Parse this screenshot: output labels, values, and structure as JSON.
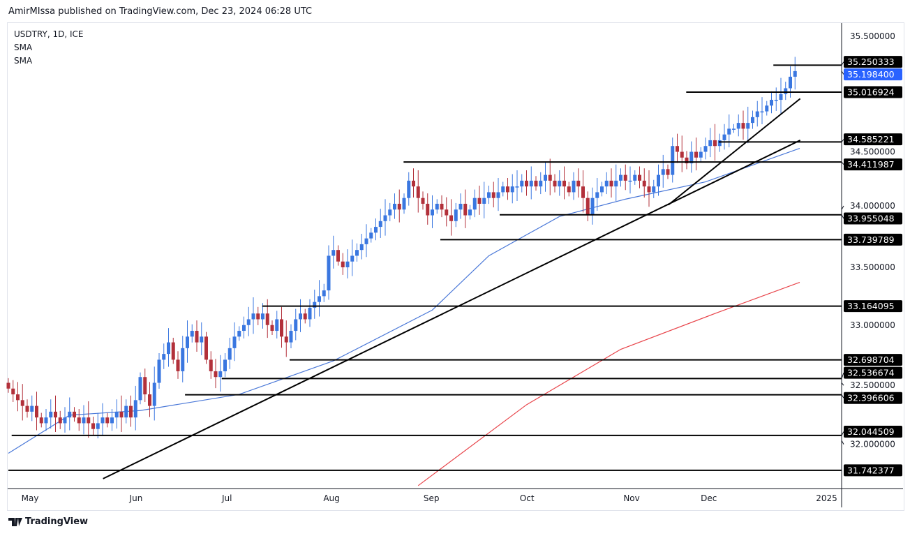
{
  "header": {
    "published": "AmirMIssa published on TradingView.com, Dec 23, 2024 06:28 UTC"
  },
  "legend": {
    "symbol": "USDTRY, 1D, ICE",
    "indicator1": "SMA",
    "indicator2": "SMA"
  },
  "logo": {
    "text": "TradingView"
  },
  "colors": {
    "up": "#3a77e0",
    "down": "#b2303a",
    "sma_fast": "#4a78d8",
    "sma_slow": "#e8444a",
    "last_price": "#2962ff",
    "lines": "#000000"
  },
  "chart_data": {
    "type": "candlestick",
    "title": "USDTRY, 1D, ICE",
    "ylim": [
      31.65,
      35.6
    ],
    "y_ticks": [
      "35.500000",
      "34.500000",
      "34.000000",
      "33.500000",
      "33.000000",
      "32.500000",
      "32.000000"
    ],
    "x_ticks": [
      {
        "label": "May",
        "bar": 4.6
      },
      {
        "label": "Jun",
        "bar": 27.1
      },
      {
        "label": "Jul",
        "bar": 46.4
      },
      {
        "label": "Aug",
        "bar": 68.6
      },
      {
        "label": "Sep",
        "bar": 89.8
      },
      {
        "label": "Oct",
        "bar": 110.1
      },
      {
        "label": "Nov",
        "bar": 132.3
      },
      {
        "label": "Dec",
        "bar": 148.7
      },
      {
        "label": "2025",
        "bar": 173.7
      }
    ],
    "closes": [
      32.45,
      32.4,
      32.35,
      32.3,
      32.25,
      32.3,
      32.2,
      32.15,
      32.2,
      32.25,
      32.2,
      32.15,
      32.2,
      32.25,
      32.2,
      32.15,
      32.2,
      32.15,
      32.1,
      32.15,
      32.2,
      32.15,
      32.2,
      32.25,
      32.2,
      32.3,
      32.2,
      32.35,
      32.55,
      32.4,
      32.3,
      32.5,
      32.7,
      32.75,
      32.85,
      32.7,
      32.6,
      32.8,
      32.9,
      32.95,
      32.85,
      32.9,
      32.7,
      32.6,
      32.55,
      32.6,
      32.7,
      32.8,
      32.9,
      32.95,
      33.0,
      33.05,
      33.1,
      33.05,
      33.1,
      33.0,
      32.95,
      33.05,
      32.9,
      32.85,
      32.95,
      33.05,
      33.1,
      33.05,
      33.15,
      33.2,
      33.25,
      33.3,
      33.6,
      33.65,
      33.55,
      33.5,
      33.55,
      33.6,
      33.65,
      33.7,
      33.75,
      33.8,
      33.85,
      33.9,
      33.95,
      34.0,
      34.05,
      34.0,
      34.1,
      34.25,
      34.2,
      34.1,
      34.05,
      33.95,
      34.0,
      34.05,
      34.0,
      33.95,
      33.9,
      34.0,
      34.05,
      33.95,
      34.0,
      34.1,
      34.05,
      34.1,
      34.15,
      34.1,
      34.15,
      34.2,
      34.15,
      34.2,
      34.2,
      34.25,
      34.2,
      34.25,
      34.2,
      34.25,
      34.3,
      34.25,
      34.2,
      34.25,
      34.2,
      34.15,
      34.25,
      34.2,
      34.1,
      33.95,
      34.1,
      34.15,
      34.2,
      34.25,
      34.2,
      34.25,
      34.3,
      34.25,
      34.25,
      34.3,
      34.25,
      34.2,
      34.15,
      34.2,
      34.3,
      34.35,
      34.3,
      34.55,
      34.5,
      34.45,
      34.4,
      34.5,
      34.45,
      34.5,
      34.55,
      34.6,
      34.55,
      34.6,
      34.65,
      34.7,
      34.7,
      34.75,
      34.7,
      34.75,
      34.8,
      34.85,
      34.85,
      34.9,
      34.95,
      34.95,
      35.0,
      35.05,
      35.15,
      35.1984
    ],
    "series": [
      {
        "name": "SMA (fast)",
        "points": [
          [
            0,
            31.89
          ],
          [
            13,
            32.22
          ],
          [
            28,
            32.26
          ],
          [
            49,
            32.4
          ],
          [
            69,
            32.69
          ],
          [
            90,
            33.13
          ],
          [
            102,
            33.6
          ],
          [
            117,
            33.94
          ],
          [
            131,
            34.09
          ],
          [
            148,
            34.24
          ],
          [
            168,
            34.53
          ]
        ]
      },
      {
        "name": "SMA (slow)",
        "points": [
          [
            87,
            31.61
          ],
          [
            110,
            32.31
          ],
          [
            130,
            32.79
          ],
          [
            150,
            33.1
          ],
          [
            168,
            33.37
          ]
        ]
      }
    ],
    "trendlines": [
      [
        [
          20.1,
          31.67
        ],
        [
          168.1,
          34.6
        ]
      ],
      [
        [
          140.1,
          34.04
        ],
        [
          168.1,
          34.96
        ]
      ]
    ],
    "horizontal_levels": [
      {
        "label": "35.250333",
        "from_bar": 162.4
      },
      {
        "label": "35.016924",
        "from_bar": 143.9
      },
      {
        "label": "34.585221",
        "from_bar": 150.8
      },
      {
        "label": "34.411987",
        "from_bar": 83.9
      },
      {
        "label": "33.955048",
        "from_bar": 104.3
      },
      {
        "label": "33.739789",
        "from_bar": 91.7
      },
      {
        "label": "33.164095",
        "from_bar": 53.9
      },
      {
        "label": "32.698704",
        "from_bar": 59.7
      },
      {
        "label": "32.536674",
        "from_bar": 45.3
      },
      {
        "label": "32.396606",
        "from_bar": 37.5
      },
      {
        "label": "32.044509",
        "from_bar": 0.7
      },
      {
        "label": "31.742377",
        "from_bar": 0
      }
    ],
    "last_price": "35.198400"
  }
}
